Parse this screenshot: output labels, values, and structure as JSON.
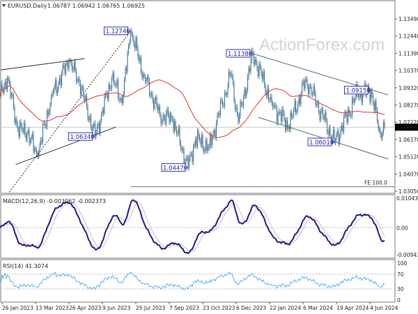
{
  "header": {
    "symbol": "EURUSD,Daily",
    "ohlc": "1.06787 1.06942 1.06765 1.06925"
  },
  "watermark": "ActionForex.com",
  "colors": {
    "candle": "#4a7794",
    "ma": "#e03030",
    "macd": "#1a1a8c",
    "signal": "#c0c0c0",
    "rsi": "#3b9cf0",
    "trend": "#2a2a2a",
    "channel": "#4a6a6a",
    "label_box": "#3030c0"
  },
  "chart_data": [
    {
      "type": "candlestick",
      "title": "EURUSD,Daily",
      "y_ticks": [
        "1.13490",
        "1.12440",
        "1.11390",
        "1.10370",
        "1.09320",
        "1.08270",
        "1.07220",
        "1.06170",
        "1.05120",
        "1.04070",
        "1.03050"
      ],
      "ylim": [
        1.0305,
        1.1349
      ],
      "current_price": "1.06925",
      "x_ticks": [
        "26 Jan 2023",
        "13 Mar 2023",
        "26 Apr 2023",
        "9 Jun 2023",
        "25 Jul 2023",
        "7 Sep 2023",
        "23 Oct 2023",
        "6 Dec 2023",
        "22 Jan 2024",
        "6 Mar 2024",
        "19 Apr 2024",
        "4 Jun 2024"
      ],
      "close_path": [
        [
          "2023-01-24",
          1.088
        ],
        [
          "2023-02-02",
          1.099
        ],
        [
          "2023-02-16",
          1.068
        ],
        [
          "2023-03-01",
          1.066
        ],
        [
          "2023-03-15",
          1.0516
        ],
        [
          "2023-04-03",
          1.088
        ],
        [
          "2023-04-26",
          1.1095
        ],
        [
          "2023-05-10",
          1.096
        ],
        [
          "2023-05-31",
          1.0635
        ],
        [
          "2023-06-22",
          1.099
        ],
        [
          "2023-07-06",
          1.084
        ],
        [
          "2023-07-18",
          1.1274
        ],
        [
          "2023-08-04",
          1.1
        ],
        [
          "2023-08-25",
          1.0765
        ],
        [
          "2023-09-12",
          1.074
        ],
        [
          "2023-10-03",
          1.0447
        ],
        [
          "2023-10-12",
          1.062
        ],
        [
          "2023-10-31",
          1.057
        ],
        [
          "2023-11-29",
          1.1015
        ],
        [
          "2023-12-08",
          1.0725
        ],
        [
          "2023-12-28",
          1.1138
        ],
        [
          "2024-01-23",
          1.084
        ],
        [
          "2024-02-14",
          1.0695
        ],
        [
          "2024-03-08",
          1.0981
        ],
        [
          "2024-04-02",
          1.074
        ],
        [
          "2024-04-16",
          1.0601
        ],
        [
          "2024-05-16",
          1.0895
        ],
        [
          "2024-06-04",
          1.0915
        ],
        [
          "2024-06-14",
          1.067
        ],
        [
          "2024-06-21",
          1.06925
        ]
      ],
      "moving_average": {
        "period": 55
      },
      "pivot_labels": [
        {
          "text": "1.12740",
          "date": "2023-07-18",
          "price": 1.1274,
          "side": "left"
        },
        {
          "text": "1.06340",
          "date": "2023-05-31",
          "price": 1.0634,
          "side": "left"
        },
        {
          "text": "1.04470",
          "date": "2023-10-03",
          "price": 1.0447,
          "side": "left"
        },
        {
          "text": "1.11380",
          "date": "2023-12-28",
          "price": 1.1138,
          "side": "left"
        },
        {
          "text": "1.09150",
          "date": "2024-06-04",
          "price": 1.0915,
          "side": "left"
        },
        {
          "text": "1.06010",
          "date": "2024-04-16",
          "price": 1.0601,
          "side": "left"
        }
      ],
      "trendlines": [
        {
          "from": [
            "2023-01-25",
            1.104
          ],
          "to": [
            "2023-05-17",
            1.1108
          ],
          "style": "solid"
        },
        {
          "from": [
            "2023-02-14",
            1.0466
          ],
          "to": [
            "2023-06-28",
            1.0694
          ],
          "style": "solid"
        },
        {
          "from": [
            "2023-02-06",
            1.0301
          ],
          "to": [
            "2023-07-18",
            1.1274
          ],
          "style": "dotted"
        },
        {
          "from": [
            "2023-12-28",
            1.1138
          ],
          "to": [
            "2024-06-26",
            1.0888
          ],
          "style": "channel"
        },
        {
          "from": [
            "2024-01-04",
            1.0753
          ],
          "to": [
            "2024-06-26",
            1.05
          ],
          "style": "channel"
        }
      ],
      "fibo": {
        "label": "FE 100.0",
        "price": 1.0332,
        "from": "2023-07-18"
      }
    },
    {
      "type": "line",
      "title": "MACD(12,26,9) -0.003062 -0.002373",
      "y_ticks": [
        "0.010434",
        "0.00",
        "-0.009436"
      ],
      "ylim": [
        -0.009436,
        0.010434
      ]
    },
    {
      "type": "line",
      "title": "RSI(14) 41.3074",
      "y_ticks": [
        "100",
        "70",
        "30",
        "0"
      ],
      "ylim": [
        0,
        100
      ],
      "levels": [
        70,
        30
      ]
    }
  ]
}
